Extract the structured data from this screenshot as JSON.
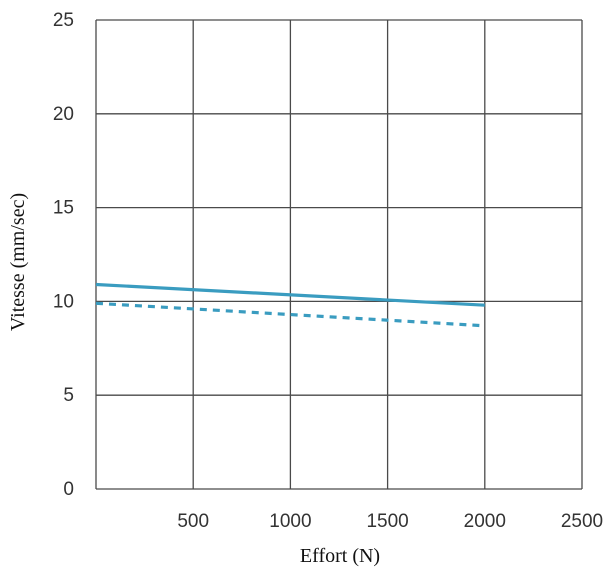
{
  "chart_data": {
    "type": "line",
    "title": "",
    "xlabel": "Effort (N)",
    "ylabel": "Vitesse (mm/sec)",
    "xlim": [
      0,
      2500
    ],
    "ylim": [
      0,
      25
    ],
    "x_ticks": [
      500,
      1000,
      1500,
      2000,
      2500
    ],
    "y_ticks": [
      0,
      5,
      10,
      15,
      20,
      25
    ],
    "grid": true,
    "legend": "none",
    "series": [
      {
        "style": "solid",
        "color": "#3a9cc0",
        "x": [
          0,
          2000
        ],
        "y": [
          10.9,
          9.8
        ]
      },
      {
        "style": "dashed",
        "color": "#3a9cc0",
        "x": [
          0,
          2000
        ],
        "y": [
          9.9,
          8.7
        ]
      }
    ]
  }
}
